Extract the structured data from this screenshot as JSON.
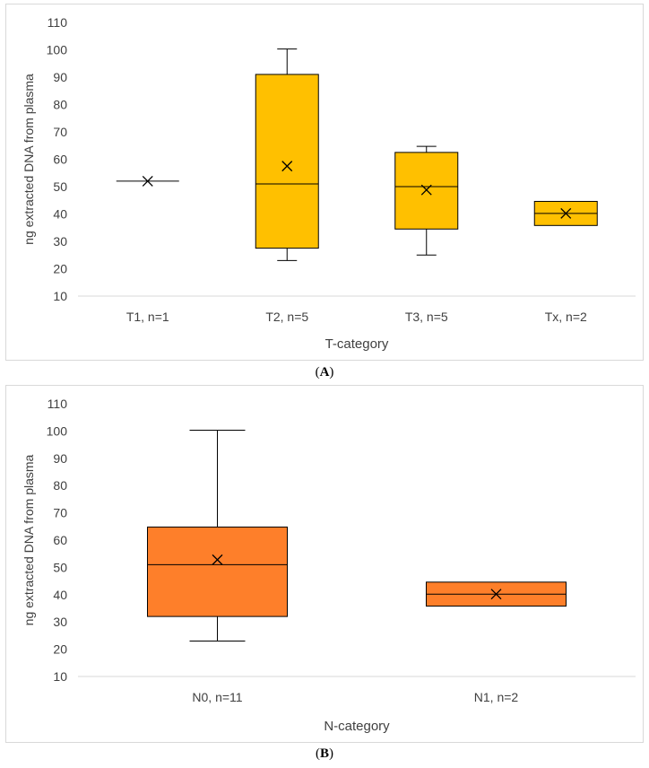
{
  "figures": [
    {
      "caption_letter": "A",
      "chart_data": {
        "type": "boxplot",
        "title": "",
        "xlabel": "T-category",
        "ylabel": "ng extracted DNA from plasma",
        "ylim": [
          10,
          110
        ],
        "yticks": [
          10,
          20,
          30,
          40,
          50,
          60,
          70,
          80,
          90,
          100,
          110
        ],
        "grid": false,
        "fill_color": "#ffc000",
        "categories": [
          "T1, n=1",
          "T2, n=5",
          "T3, n=5",
          "Tx, n=2"
        ],
        "boxes": [
          {
            "label": "T1, n=1",
            "min": 52,
            "q1": 52,
            "median": 52,
            "q3": 52,
            "max": 52,
            "mean": 52
          },
          {
            "label": "T2, n=5",
            "min": 23,
            "q1": 27.5,
            "median": 51,
            "q3": 91,
            "max": 100.3,
            "mean": 57.5
          },
          {
            "label": "T3, n=5",
            "min": 25,
            "q1": 34.5,
            "median": 50,
            "q3": 62.5,
            "max": 64.7,
            "mean": 48.8
          },
          {
            "label": "Tx, n=2",
            "min": 35.8,
            "q1": 35.8,
            "median": 40.2,
            "q3": 44.6,
            "max": 44.6,
            "mean": 40.2
          }
        ]
      }
    },
    {
      "caption_letter": "B",
      "chart_data": {
        "type": "boxplot",
        "title": "",
        "xlabel": "N-category",
        "ylabel": "ng extracted DNA from plasma",
        "ylim": [
          10,
          110
        ],
        "yticks": [
          10,
          20,
          30,
          40,
          50,
          60,
          70,
          80,
          90,
          100,
          110
        ],
        "grid": false,
        "fill_color": "#fe7f2a",
        "categories": [
          "N0, n=11",
          "N1, n=2"
        ],
        "boxes": [
          {
            "label": "N0, n=11",
            "min": 23,
            "q1": 32,
            "median": 51,
            "q3": 64.8,
            "max": 100.3,
            "mean": 52.8
          },
          {
            "label": "N1, n=2",
            "min": 35.8,
            "q1": 35.8,
            "median": 40.2,
            "q3": 44.6,
            "max": 44.6,
            "mean": 40.2
          }
        ]
      }
    }
  ]
}
